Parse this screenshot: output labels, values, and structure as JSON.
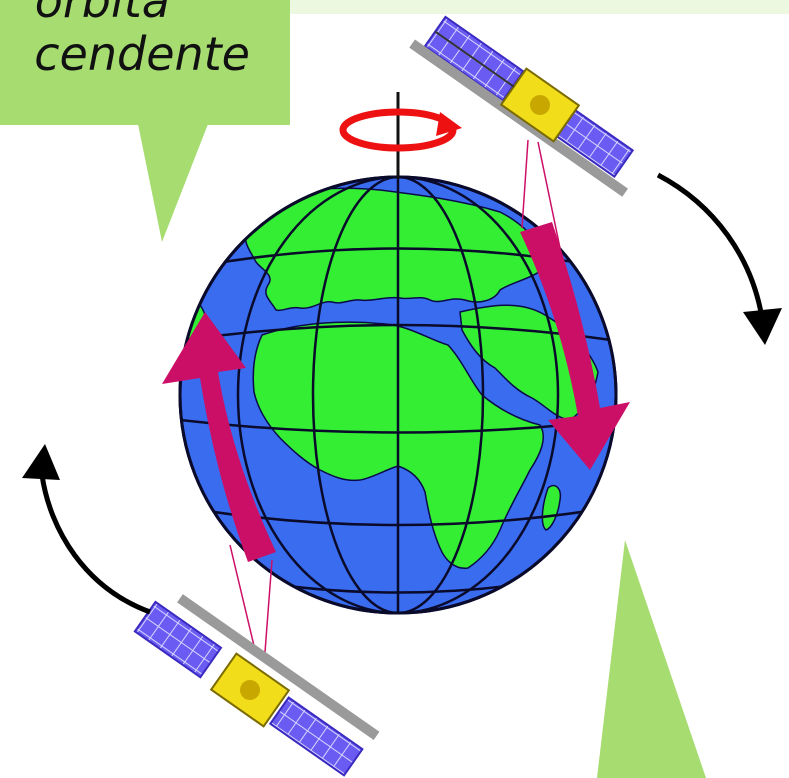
{
  "callout": {
    "line1": "orbita",
    "line2": "cendente"
  },
  "colors": {
    "callout_fill": "#a6dc70",
    "top_band": "#ecf9e0",
    "ocean": "#3a6cf0",
    "land": "#33ee33",
    "orbit_arrow": "#cc0f66",
    "rotation_arrow": "#ee1111",
    "satellite_panel": "#6a5cf2",
    "satellite_body": "#f2dd1a"
  },
  "icons": {
    "globe": "globe-icon",
    "satellite_top": "satellite-icon",
    "satellite_bottom": "satellite-icon",
    "rotation": "rotation-arrow-icon"
  }
}
